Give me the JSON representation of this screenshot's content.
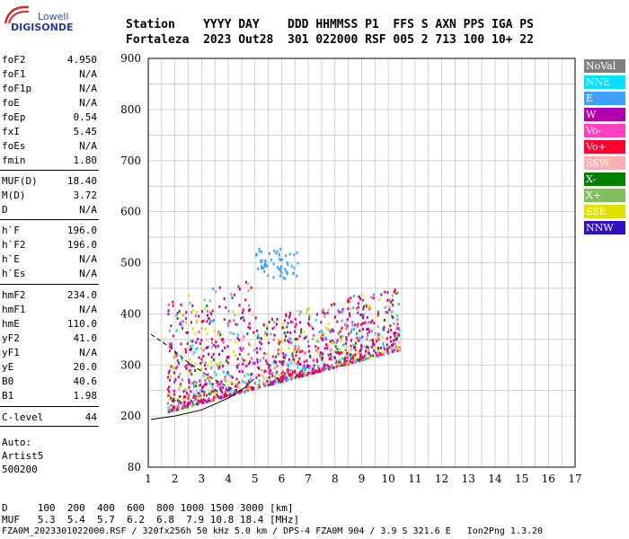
{
  "logo": {
    "line1": "Lowell",
    "line2": "DIGISONDE"
  },
  "header": {
    "line1": "Station    YYYY DAY    DDD HHMMSS P1  FFS S AXN PPS IGA PS",
    "line2": "Fortaleza  2023 Out28  301 022000 RSF 005 2 713 100 10+ 22"
  },
  "params": {
    "group1": [
      {
        "k": "foF2",
        "v": "4.950"
      },
      {
        "k": "foF1",
        "v": "N/A"
      },
      {
        "k": "foF1p",
        "v": "N/A"
      },
      {
        "k": "foE",
        "v": "N/A"
      },
      {
        "k": "foEp",
        "v": "0.54"
      },
      {
        "k": "fxI",
        "v": "5.45"
      },
      {
        "k": "foEs",
        "v": "N/A"
      },
      {
        "k": "fmin",
        "v": "1.80"
      }
    ],
    "group2": [
      {
        "k": "MUF(D)",
        "v": "18.40"
      },
      {
        "k": "M(D)",
        "v": "3.72"
      },
      {
        "k": "D",
        "v": "N/A"
      }
    ],
    "group3": [
      {
        "k": "h`F",
        "v": "196.0"
      },
      {
        "k": "h`F2",
        "v": "196.0"
      },
      {
        "k": "h`E",
        "v": "N/A"
      },
      {
        "k": "h`Es",
        "v": "N/A"
      }
    ],
    "group4": [
      {
        "k": "hmF2",
        "v": "234.0"
      },
      {
        "k": "hmF1",
        "v": "N/A"
      },
      {
        "k": "hmE",
        "v": "110.0"
      },
      {
        "k": "yF2",
        "v": "41.0"
      },
      {
        "k": "yF1",
        "v": "N/A"
      },
      {
        "k": "yE",
        "v": "20.0"
      },
      {
        "k": "B0",
        "v": "40.6"
      },
      {
        "k": "B1",
        "v": "1.98"
      }
    ],
    "group5": [
      {
        "k": "C-level",
        "v": "44"
      }
    ]
  },
  "autoscaling": {
    "line1": "Auto:",
    "line2": "Artist5",
    "line3": "500200"
  },
  "legend": [
    {
      "label": "NoVal",
      "color": "#808080"
    },
    {
      "label": "NNE",
      "color": "#00e0ff"
    },
    {
      "label": "E",
      "color": "#40a0ff"
    },
    {
      "label": "W",
      "color": "#b000b0"
    },
    {
      "label": "Vo-",
      "color": "#ff40c0"
    },
    {
      "label": "Vo+",
      "color": "#ff0030"
    },
    {
      "label": "SSW",
      "color": "#ffb0b0"
    },
    {
      "label": "X-",
      "color": "#008000"
    },
    {
      "label": "X+",
      "color": "#80c060"
    },
    {
      "label": "SSE",
      "color": "#e0e000"
    },
    {
      "label": "NNW",
      "color": "#3010c0"
    }
  ],
  "plot": {
    "x_ticks": [
      "1",
      "2",
      "3",
      "4",
      "5",
      "6",
      "7",
      "8",
      "9",
      "10",
      "11",
      "12",
      "13",
      "14",
      "15",
      "16",
      "17"
    ],
    "y_ticks": [
      "80",
      "200",
      "300",
      "400",
      "500",
      "600",
      "700",
      "800",
      "900"
    ],
    "x_range": [
      1,
      17
    ],
    "y_range": [
      80,
      900
    ]
  },
  "bottom": {
    "d_line": "D     100  200  400  600  800 1000 1500 3000 [km]",
    "muf_line": "MUF   5.3  5.4  5.7  6.2  6.8  7.9 10.8 18.4 [MHz]",
    "footer": "FZA0M_2023301022000.RSF / 320fx256h 50 kHz 5.0 km / DPS-4 FZA0M 904 / 3.9 S 321.6 E   Ion2Png 1.3.20"
  }
}
